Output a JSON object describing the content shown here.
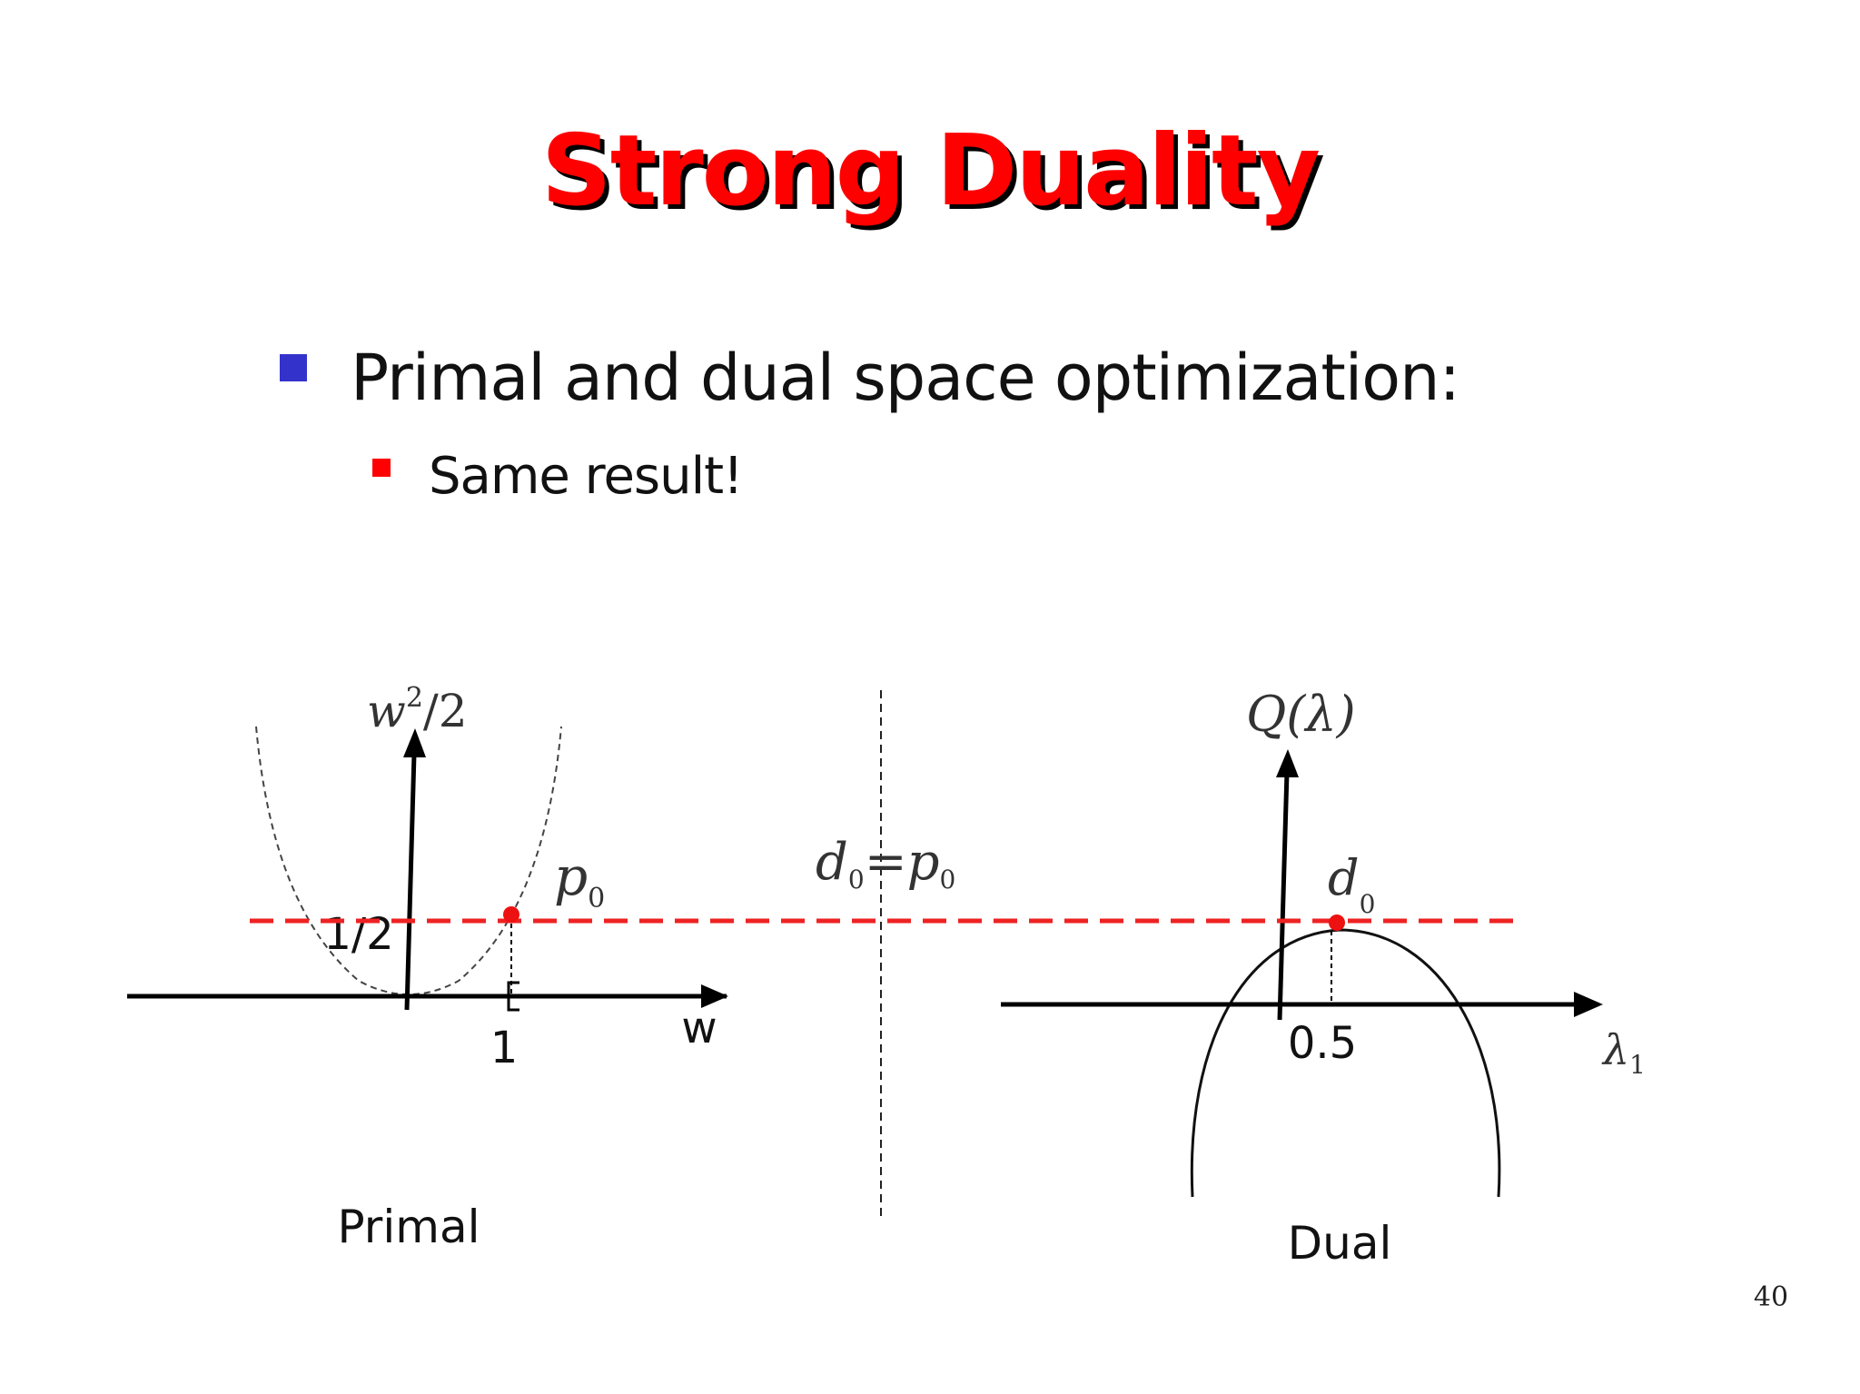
{
  "title": "Strong Duality",
  "bullets": {
    "level1": "Primal and dual space optimization:",
    "level2": "Same result!"
  },
  "diagram": {
    "primal": {
      "y_axis_label_base": "w",
      "y_axis_label_sup": "2",
      "y_axis_label_rest": "/2",
      "x_axis_label": "w",
      "tick_x": "1",
      "tick_y": "1/2",
      "point_label_base": "p",
      "point_label_sub": "0",
      "caption": "Primal"
    },
    "center": {
      "eq_left_base": "d",
      "eq_left_sub": "0",
      "eq_sign": "=",
      "eq_right_base": "p",
      "eq_right_sub": "0"
    },
    "dual": {
      "y_axis_label": "Q(λ)",
      "x_axis_label_base": "λ",
      "x_axis_label_sub": "1",
      "tick_x": "0.5",
      "point_label_base": "d",
      "point_label_sub": "0",
      "caption": "Dual"
    },
    "colors": {
      "dashed_line": "#ee2222",
      "point": "#ee1111",
      "axis": "#000000"
    }
  },
  "page_number": "40"
}
